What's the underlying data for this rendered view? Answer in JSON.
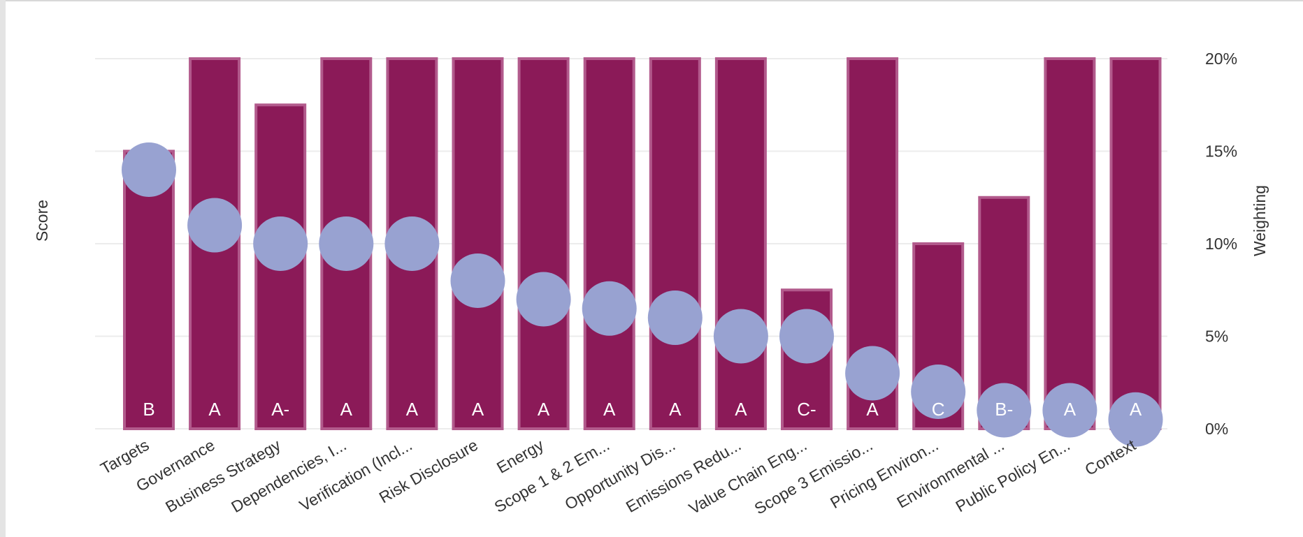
{
  "chart_data": {
    "type": "bar",
    "categories": [
      "Targets",
      "Governance",
      "Business Strategy",
      "Dependencies, I...",
      "Verification (Incl...",
      "Risk Disclosure",
      "Energy",
      "Scope 1 & 2 Em...",
      "Opportunity Dis...",
      "Emissions Redu...",
      "Value Chain Eng...",
      "Scope 3 Emissio...",
      "Pricing Environ...",
      "Environmental ...",
      "Public Policy En...",
      "Context"
    ],
    "series": [
      {
        "type": "bar",
        "axis": "score",
        "values": [
          15,
          20,
          17.5,
          20,
          20,
          20,
          20,
          20,
          20,
          20,
          7.5,
          20,
          10,
          12.5,
          20,
          20
        ],
        "labels": [
          "B",
          "A",
          "A-",
          "A",
          "A",
          "A",
          "A",
          "A",
          "A",
          "A",
          "C-",
          "A",
          "C",
          "B-",
          "A",
          "A"
        ]
      },
      {
        "type": "scatter",
        "axis": "weighting",
        "values": [
          14,
          11,
          10,
          10,
          10,
          8,
          7,
          6.5,
          6,
          5,
          5,
          3,
          2,
          1,
          1,
          0.5
        ]
      }
    ],
    "ylabel_left": "Score",
    "ylabel_right": "Weighting",
    "ylim": [
      0,
      20
    ],
    "y_ticks": [
      "0%",
      "5%",
      "10%",
      "15%",
      "20%"
    ],
    "grid": true,
    "colors": {
      "bar": "#8b1a58",
      "bar_border": "#b25a8c",
      "marker": "#98a2d1",
      "grid": "#ececec"
    }
  }
}
